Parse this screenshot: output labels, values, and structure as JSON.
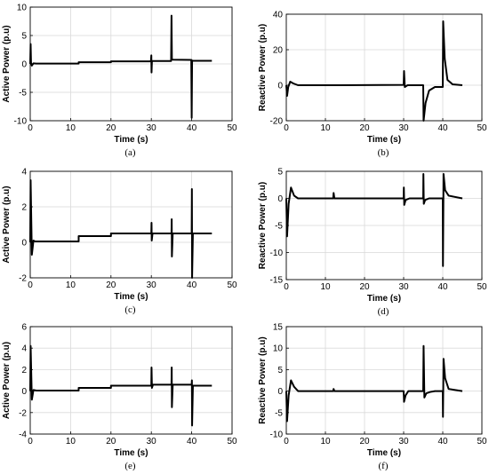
{
  "chart_data": [
    {
      "id": "a",
      "type": "line",
      "caption": "(a)",
      "xlabel": "Time (s)",
      "ylabel": "Active Power (p.u)",
      "xlim": [
        0,
        50
      ],
      "ylim": [
        -10,
        10
      ],
      "xticks": [
        0,
        10,
        20,
        30,
        40,
        50
      ],
      "yticks": [
        -10,
        -5,
        0,
        5,
        10
      ],
      "grid": true,
      "x": [
        0,
        0.1,
        0.2,
        0.4,
        0.8,
        1.5,
        3,
        12,
        12,
        20,
        20,
        29.9,
        30,
        30.05,
        30.15,
        30.5,
        34.9,
        35,
        35.1,
        35.3,
        39.9,
        40,
        40.1,
        40.3,
        45
      ],
      "y": [
        0,
        3.5,
        0.2,
        -0.3,
        0.1,
        0.05,
        0.05,
        0.05,
        0.3,
        0.3,
        0.45,
        0.45,
        1.5,
        -1.5,
        0.5,
        0.5,
        0.5,
        8.5,
        0.8,
        0.75,
        0.7,
        -9.5,
        0.6,
        0.55,
        0.55
      ]
    },
    {
      "id": "b",
      "type": "line",
      "caption": "(b)",
      "xlabel": "Time (s)",
      "ylabel": "Reactive Power (p.u)",
      "xlim": [
        0,
        50
      ],
      "ylim": [
        -20,
        40
      ],
      "xticks": [
        0,
        10,
        20,
        30,
        40,
        50
      ],
      "yticks": [
        -20,
        0,
        20,
        40
      ],
      "grid": true,
      "x": [
        0,
        0.2,
        0.5,
        1,
        1.8,
        3,
        5,
        12,
        30,
        30.1,
        30.3,
        31,
        35,
        35.1,
        35.6,
        36.5,
        38,
        40,
        40.1,
        40.5,
        41.2,
        42.5,
        45
      ],
      "y": [
        0,
        -6,
        -1,
        2,
        1,
        0,
        0,
        0,
        0.2,
        8,
        -1,
        0,
        0,
        -20,
        -10,
        -3,
        -1,
        -1,
        36,
        15,
        3,
        0.5,
        0
      ]
    },
    {
      "id": "c",
      "type": "line",
      "caption": "(c)",
      "xlabel": "Time (s)",
      "ylabel": "Active Power (p.u)",
      "xlim": [
        0,
        50
      ],
      "ylim": [
        -2,
        4
      ],
      "xticks": [
        0,
        10,
        20,
        30,
        40,
        50
      ],
      "yticks": [
        -2,
        0,
        2,
        4
      ],
      "grid": true,
      "x": [
        0,
        0.1,
        0.4,
        0.8,
        1.2,
        2,
        12,
        12,
        20,
        20,
        30,
        30.05,
        30.1,
        30.3,
        35,
        35.05,
        35.1,
        35.3,
        40,
        40.05,
        40.1,
        40.3,
        45
      ],
      "y": [
        0,
        3.5,
        -0.7,
        0.1,
        0.05,
        0.05,
        0.05,
        0.35,
        0.35,
        0.5,
        0.5,
        1.1,
        0.1,
        0.5,
        0.5,
        1.3,
        -0.8,
        0.5,
        0.5,
        3.0,
        -2.0,
        0.5,
        0.5
      ]
    },
    {
      "id": "d",
      "type": "line",
      "caption": "(d)",
      "xlabel": "Time (s)",
      "ylabel": "Reactive Power (p.u)",
      "xlim": [
        0,
        50
      ],
      "ylim": [
        -15,
        5
      ],
      "xticks": [
        0,
        10,
        20,
        30,
        40,
        50
      ],
      "yticks": [
        -15,
        -10,
        -5,
        0,
        5
      ],
      "grid": true,
      "x": [
        0,
        0.2,
        0.6,
        1.2,
        2,
        3,
        12,
        12.1,
        12.3,
        20,
        30,
        30.05,
        30.15,
        30.5,
        31.5,
        35,
        35.05,
        35.15,
        35.5,
        36.5,
        40,
        40.05,
        40.2,
        40.6,
        41.5,
        45
      ],
      "y": [
        0,
        -7,
        -1,
        2,
        0.5,
        0,
        0,
        1,
        0,
        0,
        0,
        2,
        -1.2,
        -0.3,
        0,
        0,
        4.5,
        -1,
        -0.3,
        0,
        0,
        -12.5,
        4.5,
        1.5,
        0.5,
        0
      ]
    },
    {
      "id": "e",
      "type": "line",
      "caption": "(e)",
      "xlabel": "Time (s)",
      "ylabel": "Active Power (p.u)",
      "xlim": [
        0,
        50
      ],
      "ylim": [
        -4,
        6
      ],
      "xticks": [
        0,
        10,
        20,
        30,
        40,
        50
      ],
      "yticks": [
        -4,
        -2,
        0,
        2,
        4,
        6
      ],
      "grid": true,
      "x": [
        0,
        0.1,
        0.4,
        0.8,
        1.5,
        12,
        12,
        20,
        20,
        30,
        30.05,
        30.15,
        30.4,
        35,
        35.05,
        35.1,
        35.3,
        40,
        40.05,
        40.1,
        40.3,
        45
      ],
      "y": [
        0,
        4.2,
        -0.8,
        0.1,
        0.05,
        0.05,
        0.3,
        0.3,
        0.5,
        0.5,
        2.2,
        0.3,
        0.6,
        0.6,
        2.2,
        -1.5,
        0.6,
        0.6,
        1.0,
        -3.2,
        0.5,
        0.5
      ]
    },
    {
      "id": "f",
      "type": "line",
      "caption": "(f)",
      "xlabel": "Time (s)",
      "ylabel": "Reactive Power (p.u)",
      "xlim": [
        0,
        50
      ],
      "ylim": [
        -10,
        15
      ],
      "xticks": [
        0,
        10,
        20,
        30,
        40,
        50
      ],
      "yticks": [
        -10,
        -5,
        0,
        5,
        10,
        15
      ],
      "grid": true,
      "x": [
        0,
        0.2,
        0.6,
        1.2,
        2,
        3,
        12,
        12.1,
        12.3,
        30,
        30.1,
        30.5,
        31.2,
        35,
        35.1,
        35.3,
        35.8,
        36.8,
        38,
        40,
        40.05,
        40.2,
        40.6,
        41.5,
        45
      ],
      "y": [
        0,
        -7,
        -1,
        2.5,
        1,
        0,
        0,
        0.5,
        0,
        0,
        -2.5,
        -1,
        0,
        0,
        10.5,
        -1.5,
        -0.5,
        -0.2,
        0,
        0,
        -6,
        7.5,
        3,
        0.5,
        0
      ]
    }
  ]
}
